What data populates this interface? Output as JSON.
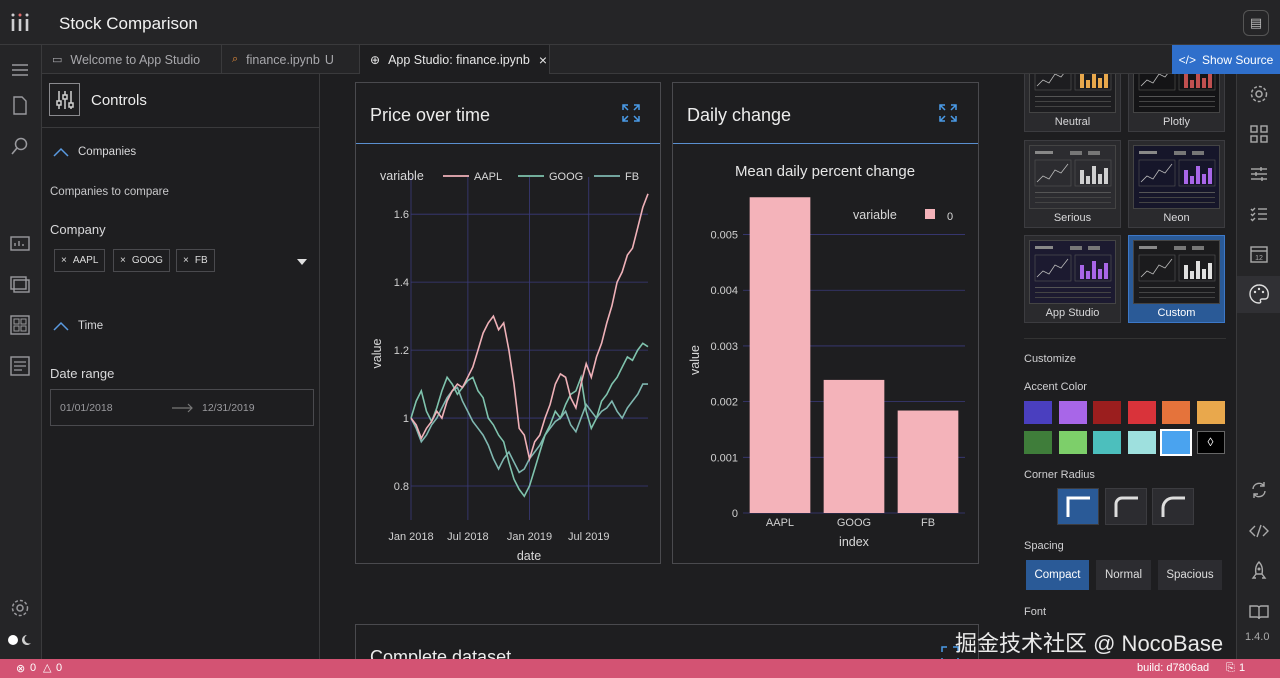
{
  "app": {
    "title": "Stock Comparison"
  },
  "tabs": [
    {
      "label": "Welcome to App Studio",
      "icon": "window-icon"
    },
    {
      "label": "finance.ipynb",
      "suffix": "U",
      "icon": "notebook-icon"
    },
    {
      "label": "App Studio: finance.ipynb",
      "icon": "globe-icon"
    }
  ],
  "show_source": {
    "label": "Show Source"
  },
  "controls": {
    "title": "Controls",
    "companies_section": "Companies",
    "companies_desc": "Companies to compare",
    "company_label": "Company",
    "chips": [
      "AAPL",
      "GOOG",
      "FB"
    ],
    "chip_remove": "×",
    "time_section": "Time",
    "date_range_label": "Date range",
    "date_start": "01/01/2018",
    "date_end": "12/31/2019"
  },
  "cards": {
    "price": {
      "title": "Price over time"
    },
    "daily": {
      "title": "Daily change"
    },
    "dataset": {
      "title": "Complete dataset"
    }
  },
  "chart_data": [
    {
      "type": "line",
      "title": "",
      "legend_title": "variable",
      "xlabel": "date",
      "ylabel": "value",
      "x_ticks": [
        "Jan 2018",
        "Jul 2018",
        "Jan 2019",
        "Jul 2019"
      ],
      "y_ticks": [
        0.8,
        1,
        1.2,
        1.4,
        1.6
      ],
      "ylim": [
        0.7,
        1.68
      ],
      "series": [
        {
          "name": "AAPL",
          "color": "#efb1b8",
          "values": [
            1.0,
            0.98,
            0.94,
            0.97,
            0.99,
            1.02,
            1.0,
            1.05,
            1.08,
            1.1,
            1.09,
            1.12,
            1.15,
            1.2,
            1.25,
            1.28,
            1.3,
            1.26,
            1.28,
            1.2,
            1.1,
            0.97,
            0.95,
            0.88,
            0.93,
            0.95,
            1.0,
            1.04,
            1.1,
            1.13,
            1.12,
            1.06,
            1.03,
            1.1,
            1.16,
            1.12,
            1.18,
            1.22,
            1.28,
            1.33,
            1.4,
            1.43,
            1.48,
            1.5,
            1.56,
            1.62,
            1.66
          ]
        },
        {
          "name": "GOOG",
          "color": "#7fc3ad",
          "values": [
            1.0,
            1.05,
            1.08,
            1.02,
            0.99,
            1.03,
            1.08,
            1.12,
            1.1,
            1.07,
            1.09,
            1.11,
            1.12,
            1.08,
            1.06,
            1.0,
            0.98,
            0.95,
            0.93,
            0.87,
            0.82,
            0.79,
            0.77,
            0.8,
            0.85,
            0.9,
            0.95,
            0.98,
            1.02,
            1.0,
            1.04,
            1.07,
            1.08,
            1.12,
            1.02,
            0.97,
            1.0,
            1.05,
            1.07,
            1.1,
            1.12,
            1.15,
            1.18,
            1.17,
            1.2,
            1.22,
            1.21
          ]
        },
        {
          "name": "FB",
          "color": "#7fb7b0",
          "values": [
            1.0,
            0.97,
            0.93,
            0.95,
            0.98,
            1.0,
            1.03,
            1.06,
            1.08,
            1.09,
            1.05,
            1.02,
            0.99,
            0.97,
            0.95,
            0.92,
            0.88,
            0.85,
            0.88,
            0.9,
            0.87,
            0.84,
            0.85,
            0.88,
            0.9,
            0.92,
            0.95,
            0.97,
            0.99,
            1.0,
            1.02,
            0.98,
            0.96,
            1.0,
            1.04,
            1.02,
            1.0,
            1.02,
            1.03,
            1.05,
            1.02,
            1.0,
            1.03,
            1.05,
            1.07,
            1.1,
            1.1
          ]
        }
      ]
    },
    {
      "type": "bar",
      "title": "Mean daily percent change",
      "legend_title": "variable",
      "legend_label": "0",
      "xlabel": "index",
      "ylabel": "value",
      "categories": [
        "AAPL",
        "GOOG",
        "FB"
      ],
      "values": [
        0.00567,
        0.00239,
        0.00184
      ],
      "y_ticks": [
        "0",
        "0.001",
        "0.002",
        "0.003",
        "0.004",
        "0.005"
      ],
      "ylim": [
        0,
        0.0058
      ],
      "color": "#f4b3ba"
    }
  ],
  "themes": {
    "items": [
      {
        "name": "Neutral"
      },
      {
        "name": "Plotly"
      },
      {
        "name": "Serious"
      },
      {
        "name": "Neon"
      },
      {
        "name": "App Studio"
      },
      {
        "name": "Custom"
      }
    ]
  },
  "customize": {
    "title": "Customize",
    "accent_label": "Accent Color",
    "accent_colors": [
      "#4a3fbf",
      "#a866e8",
      "#9b1e1e",
      "#d9333a",
      "#e5733b",
      "#e9a84c",
      "#3f7d3a",
      "#7dcf6a",
      "#4cbfbd",
      "#9ee0de",
      "#4aa3ef",
      "#000000"
    ],
    "corner_label": "Corner Radius",
    "spacing_label": "Spacing",
    "spacing": [
      "Compact",
      "Normal",
      "Spacious"
    ],
    "font_label": "Font"
  },
  "statusbar": {
    "errors": "0",
    "warnings": "0",
    "build": "build: d7806ad",
    "count": "1",
    "version": "1.4.0"
  },
  "watermark": "掘金技术社区 @ NocoBase"
}
